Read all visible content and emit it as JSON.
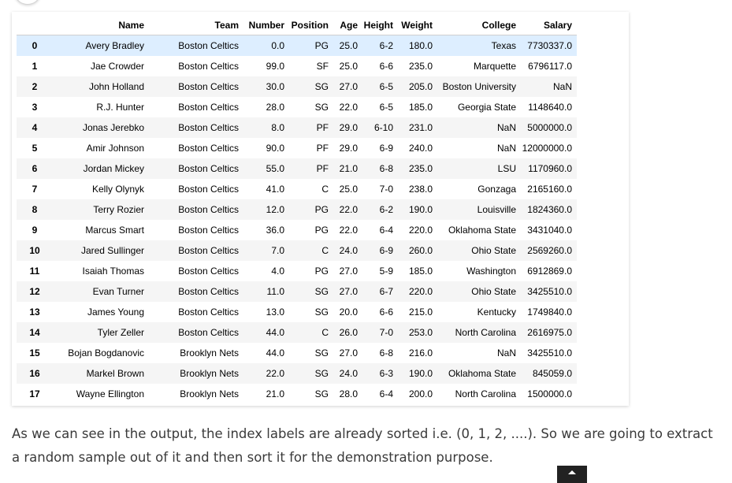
{
  "table": {
    "columns": [
      "",
      "Name",
      "Team",
      "Number",
      "Position",
      "Age",
      "Height",
      "Weight",
      "College",
      "Salary"
    ],
    "rows": [
      [
        "0",
        "Avery Bradley",
        "Boston Celtics",
        "0.0",
        "PG",
        "25.0",
        "6-2",
        "180.0",
        "Texas",
        "7730337.0"
      ],
      [
        "1",
        "Jae Crowder",
        "Boston Celtics",
        "99.0",
        "SF",
        "25.0",
        "6-6",
        "235.0",
        "Marquette",
        "6796117.0"
      ],
      [
        "2",
        "John Holland",
        "Boston Celtics",
        "30.0",
        "SG",
        "27.0",
        "6-5",
        "205.0",
        "Boston University",
        "NaN"
      ],
      [
        "3",
        "R.J. Hunter",
        "Boston Celtics",
        "28.0",
        "SG",
        "22.0",
        "6-5",
        "185.0",
        "Georgia State",
        "1148640.0"
      ],
      [
        "4",
        "Jonas Jerebko",
        "Boston Celtics",
        "8.0",
        "PF",
        "29.0",
        "6-10",
        "231.0",
        "NaN",
        "5000000.0"
      ],
      [
        "5",
        "Amir Johnson",
        "Boston Celtics",
        "90.0",
        "PF",
        "29.0",
        "6-9",
        "240.0",
        "NaN",
        "12000000.0"
      ],
      [
        "6",
        "Jordan Mickey",
        "Boston Celtics",
        "55.0",
        "PF",
        "21.0",
        "6-8",
        "235.0",
        "LSU",
        "1170960.0"
      ],
      [
        "7",
        "Kelly Olynyk",
        "Boston Celtics",
        "41.0",
        "C",
        "25.0",
        "7-0",
        "238.0",
        "Gonzaga",
        "2165160.0"
      ],
      [
        "8",
        "Terry Rozier",
        "Boston Celtics",
        "12.0",
        "PG",
        "22.0",
        "6-2",
        "190.0",
        "Louisville",
        "1824360.0"
      ],
      [
        "9",
        "Marcus Smart",
        "Boston Celtics",
        "36.0",
        "PG",
        "22.0",
        "6-4",
        "220.0",
        "Oklahoma State",
        "3431040.0"
      ],
      [
        "10",
        "Jared Sullinger",
        "Boston Celtics",
        "7.0",
        "C",
        "24.0",
        "6-9",
        "260.0",
        "Ohio State",
        "2569260.0"
      ],
      [
        "11",
        "Isaiah Thomas",
        "Boston Celtics",
        "4.0",
        "PG",
        "27.0",
        "5-9",
        "185.0",
        "Washington",
        "6912869.0"
      ],
      [
        "12",
        "Evan Turner",
        "Boston Celtics",
        "11.0",
        "SG",
        "27.0",
        "6-7",
        "220.0",
        "Ohio State",
        "3425510.0"
      ],
      [
        "13",
        "James Young",
        "Boston Celtics",
        "13.0",
        "SG",
        "20.0",
        "6-6",
        "215.0",
        "Kentucky",
        "1749840.0"
      ],
      [
        "14",
        "Tyler Zeller",
        "Boston Celtics",
        "44.0",
        "C",
        "26.0",
        "7-0",
        "253.0",
        "North Carolina",
        "2616975.0"
      ],
      [
        "15",
        "Bojan Bogdanovic",
        "Brooklyn Nets",
        "44.0",
        "SG",
        "27.0",
        "6-8",
        "216.0",
        "NaN",
        "3425510.0"
      ],
      [
        "16",
        "Markel Brown",
        "Brooklyn Nets",
        "22.0",
        "SG",
        "24.0",
        "6-3",
        "190.0",
        "Oklahoma State",
        "845059.0"
      ],
      [
        "17",
        "Wayne Ellington",
        "Brooklyn Nets",
        "21.0",
        "SG",
        "28.0",
        "6-4",
        "200.0",
        "North Carolina",
        "1500000.0"
      ]
    ]
  },
  "article": {
    "paragraph": "As we can see in the output, the index labels are already sorted i.e. (0, 1, 2, ....). So we are going to extract a random sample out of it and then sort it for the demonstration purpose."
  },
  "colors": {
    "selected_row": "#ddeeff",
    "striped_row": "#f5f5f5",
    "text": "#3a3a3a"
  },
  "icons": {
    "scroll_top": "chevron-up-icon"
  }
}
